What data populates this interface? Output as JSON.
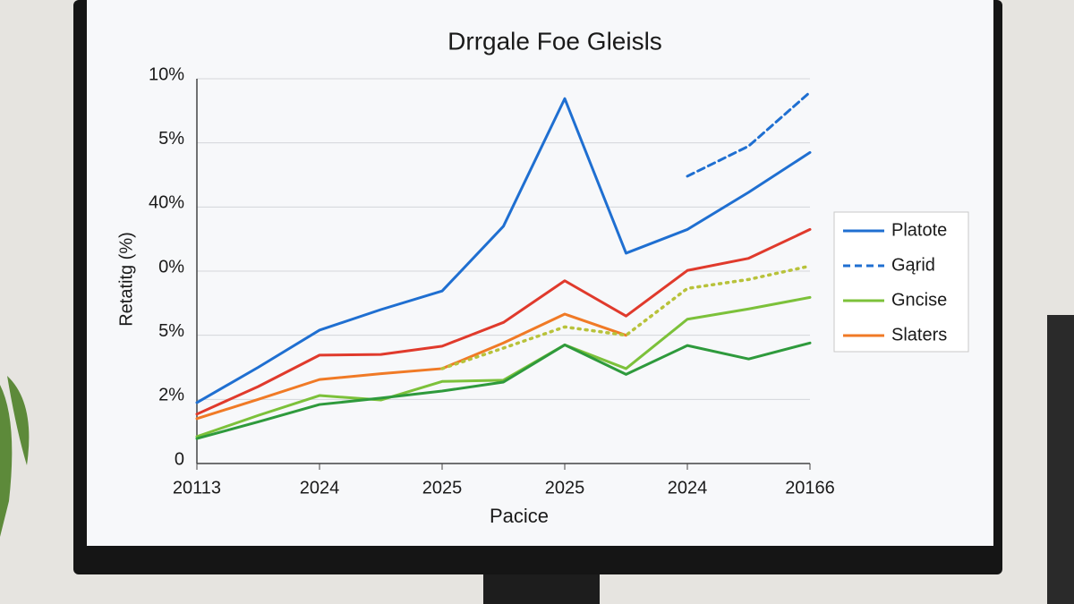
{
  "chart_data": {
    "type": "line",
    "title": "Drrgale Foe Gleisls",
    "x_label": "Pacice",
    "y_label": "Retatitg (%)",
    "categories": [
      "20113",
      null,
      "2024",
      null,
      "2025",
      null,
      "2025",
      null,
      "2024",
      null,
      "20166"
    ],
    "ylim": [
      0,
      60
    ],
    "yticks": [
      0,
      {
        "value": 10,
        "label": "2%"
      },
      {
        "value": 20,
        "label": "5%"
      },
      {
        "value": 30,
        "label": "0%"
      },
      {
        "value": 40,
        "label": "40%"
      },
      {
        "value": 50,
        "label": "5%"
      },
      {
        "value": 60,
        "label": "10%"
      }
    ],
    "grid": true,
    "legend": "right",
    "series": [
      {
        "name": "Platote",
        "color": "#1f6fd1",
        "style": "solid",
        "values": [
          9.5,
          15,
          20.8,
          24,
          26.9,
          37,
          56.9,
          32.8,
          36.5,
          42.3,
          48.5
        ]
      },
      {
        "name": "Gąrid",
        "color": "#1f6fd1",
        "style": "dashed",
        "values": [
          null,
          null,
          null,
          null,
          null,
          null,
          null,
          null,
          44.8,
          49.5,
          57.9
        ]
      },
      {
        "name": "Gncise",
        "color": "#7cc13a",
        "style": "solid",
        "values": [
          4.2,
          7.5,
          10.6,
          9.9,
          12.8,
          13,
          18.5,
          14.8,
          22.5,
          24.1,
          25.9
        ]
      },
      {
        "name": "Slaters",
        "color": "#f07a26",
        "style": "solid",
        "values": [
          7,
          10,
          13.1,
          14,
          14.8,
          18.8,
          23.3,
          20,
          null,
          null,
          null
        ]
      },
      {
        "color": "#e03a2c",
        "style": "solid",
        "values": [
          7.7,
          12,
          16.9,
          17,
          18.3,
          22,
          28.5,
          23,
          30.1,
          32,
          36.5
        ]
      },
      {
        "color": "#b8c23a",
        "style": "dotted",
        "values": [
          null,
          null,
          null,
          null,
          14.8,
          18,
          21.3,
          20,
          27.3,
          28.7,
          30.8
        ]
      },
      {
        "color": "#2e9a3c",
        "style": "solid",
        "values": [
          3.9,
          6.5,
          9.2,
          10.2,
          11.3,
          12.7,
          18.5,
          13.9,
          18.4,
          16.3,
          18.8
        ]
      }
    ]
  }
}
